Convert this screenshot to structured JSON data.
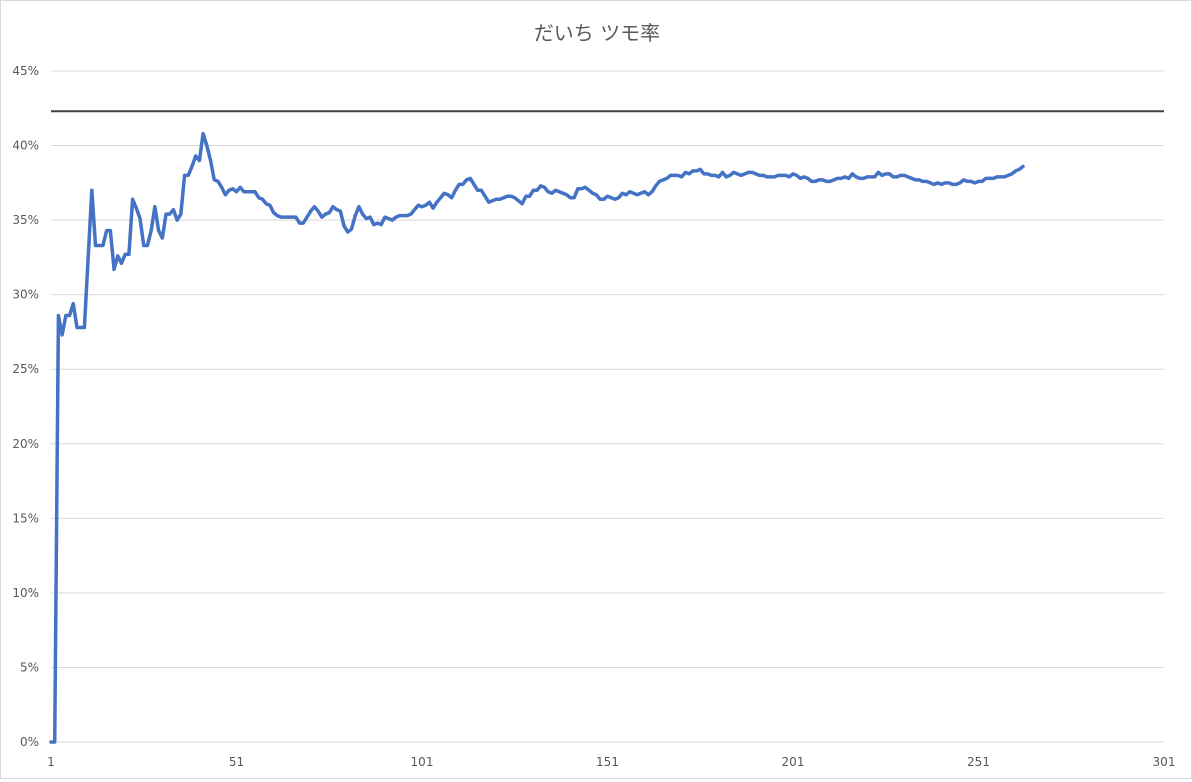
{
  "chart_data": {
    "type": "line",
    "title": "だいち ツモ率",
    "xlabel": "",
    "ylabel": "",
    "xlim": [
      1,
      301
    ],
    "ylim": [
      0,
      0.45
    ],
    "x_ticks": [
      "1",
      "51",
      "101",
      "151",
      "201",
      "251",
      "301"
    ],
    "y_ticks": [
      "0%",
      "5%",
      "10%",
      "15%",
      "20%",
      "25%",
      "30%",
      "35%",
      "40%",
      "45%"
    ],
    "grid": "horizontal",
    "legend": "none",
    "reference_line": {
      "value": 0.423,
      "color": "#404040"
    },
    "series": [
      {
        "color": "#4472c4",
        "points": [
          [
            1,
            0.0
          ],
          [
            2,
            0.0
          ],
          [
            3,
            0.286
          ],
          [
            4,
            0.273
          ],
          [
            5,
            0.286
          ],
          [
            6,
            0.286
          ],
          [
            7,
            0.294
          ],
          [
            8,
            0.278
          ],
          [
            9,
            0.278
          ],
          [
            10,
            0.278
          ],
          [
            12,
            0.37
          ],
          [
            13,
            0.333
          ],
          [
            15,
            0.333
          ],
          [
            16,
            0.343
          ],
          [
            17,
            0.343
          ],
          [
            18,
            0.317
          ],
          [
            19,
            0.326
          ],
          [
            20,
            0.321
          ],
          [
            21,
            0.327
          ],
          [
            22,
            0.327
          ],
          [
            23,
            0.364
          ],
          [
            24,
            0.358
          ],
          [
            25,
            0.351
          ],
          [
            26,
            0.333
          ],
          [
            27,
            0.333
          ],
          [
            28,
            0.343
          ],
          [
            29,
            0.359
          ],
          [
            30,
            0.343
          ],
          [
            31,
            0.338
          ],
          [
            32,
            0.354
          ],
          [
            33,
            0.354
          ],
          [
            34,
            0.357
          ],
          [
            35,
            0.35
          ],
          [
            36,
            0.354
          ],
          [
            37,
            0.38
          ],
          [
            38,
            0.38
          ],
          [
            39,
            0.386
          ],
          [
            40,
            0.393
          ],
          [
            41,
            0.39
          ],
          [
            42,
            0.408
          ],
          [
            43,
            0.4
          ],
          [
            44,
            0.39
          ],
          [
            45,
            0.377
          ],
          [
            46,
            0.376
          ],
          [
            47,
            0.372
          ],
          [
            48,
            0.367
          ],
          [
            49,
            0.37
          ],
          [
            50,
            0.371
          ],
          [
            51,
            0.369
          ],
          [
            52,
            0.372
          ],
          [
            53,
            0.369
          ],
          [
            54,
            0.369
          ],
          [
            56,
            0.369
          ],
          [
            57,
            0.365
          ],
          [
            58,
            0.364
          ],
          [
            59,
            0.361
          ],
          [
            60,
            0.36
          ],
          [
            61,
            0.355
          ],
          [
            62,
            0.353
          ],
          [
            63,
            0.352
          ],
          [
            66,
            0.352
          ],
          [
            67,
            0.352
          ],
          [
            68,
            0.348
          ],
          [
            69,
            0.348
          ],
          [
            70,
            0.352
          ],
          [
            71,
            0.356
          ],
          [
            72,
            0.359
          ],
          [
            73,
            0.356
          ],
          [
            74,
            0.352
          ],
          [
            75,
            0.354
          ],
          [
            76,
            0.355
          ],
          [
            77,
            0.359
          ],
          [
            78,
            0.357
          ],
          [
            79,
            0.356
          ],
          [
            80,
            0.346
          ],
          [
            81,
            0.342
          ],
          [
            82,
            0.344
          ],
          [
            83,
            0.353
          ],
          [
            84,
            0.359
          ],
          [
            85,
            0.354
          ],
          [
            86,
            0.351
          ],
          [
            87,
            0.352
          ],
          [
            88,
            0.347
          ],
          [
            89,
            0.348
          ],
          [
            90,
            0.347
          ],
          [
            91,
            0.352
          ],
          [
            92,
            0.351
          ],
          [
            93,
            0.35
          ],
          [
            94,
            0.352
          ],
          [
            95,
            0.353
          ],
          [
            96,
            0.353
          ],
          [
            97,
            0.353
          ],
          [
            98,
            0.354
          ],
          [
            99,
            0.357
          ],
          [
            100,
            0.36
          ],
          [
            101,
            0.359
          ],
          [
            102,
            0.36
          ],
          [
            103,
            0.362
          ],
          [
            104,
            0.358
          ],
          [
            105,
            0.362
          ],
          [
            106,
            0.365
          ],
          [
            107,
            0.368
          ],
          [
            108,
            0.367
          ],
          [
            109,
            0.365
          ],
          [
            110,
            0.37
          ],
          [
            111,
            0.374
          ],
          [
            112,
            0.374
          ],
          [
            113,
            0.377
          ],
          [
            114,
            0.378
          ],
          [
            115,
            0.374
          ],
          [
            116,
            0.37
          ],
          [
            117,
            0.37
          ],
          [
            118,
            0.366
          ],
          [
            119,
            0.362
          ],
          [
            120,
            0.363
          ],
          [
            121,
            0.364
          ],
          [
            122,
            0.364
          ],
          [
            123,
            0.365
          ],
          [
            124,
            0.366
          ],
          [
            125,
            0.366
          ],
          [
            126,
            0.365
          ],
          [
            127,
            0.363
          ],
          [
            128,
            0.361
          ],
          [
            129,
            0.366
          ],
          [
            130,
            0.366
          ],
          [
            131,
            0.37
          ],
          [
            132,
            0.37
          ],
          [
            133,
            0.373
          ],
          [
            134,
            0.372
          ],
          [
            135,
            0.369
          ],
          [
            136,
            0.368
          ],
          [
            137,
            0.37
          ],
          [
            138,
            0.369
          ],
          [
            139,
            0.368
          ],
          [
            140,
            0.367
          ],
          [
            141,
            0.365
          ],
          [
            142,
            0.365
          ],
          [
            143,
            0.371
          ],
          [
            144,
            0.371
          ],
          [
            145,
            0.372
          ],
          [
            146,
            0.37
          ],
          [
            147,
            0.368
          ],
          [
            148,
            0.367
          ],
          [
            149,
            0.364
          ],
          [
            150,
            0.364
          ],
          [
            151,
            0.366
          ],
          [
            152,
            0.365
          ],
          [
            153,
            0.364
          ],
          [
            154,
            0.365
          ],
          [
            155,
            0.368
          ],
          [
            156,
            0.367
          ],
          [
            157,
            0.369
          ],
          [
            158,
            0.368
          ],
          [
            159,
            0.367
          ],
          [
            160,
            0.368
          ],
          [
            161,
            0.369
          ],
          [
            162,
            0.367
          ],
          [
            163,
            0.369
          ],
          [
            164,
            0.373
          ],
          [
            165,
            0.376
          ],
          [
            166,
            0.377
          ],
          [
            167,
            0.378
          ],
          [
            168,
            0.38
          ],
          [
            169,
            0.38
          ],
          [
            170,
            0.38
          ],
          [
            171,
            0.379
          ],
          [
            172,
            0.382
          ],
          [
            173,
            0.381
          ],
          [
            174,
            0.383
          ],
          [
            175,
            0.383
          ],
          [
            176,
            0.384
          ],
          [
            177,
            0.381
          ],
          [
            178,
            0.381
          ],
          [
            179,
            0.38
          ],
          [
            180,
            0.38
          ],
          [
            181,
            0.379
          ],
          [
            182,
            0.382
          ],
          [
            183,
            0.379
          ],
          [
            184,
            0.38
          ],
          [
            185,
            0.382
          ],
          [
            186,
            0.381
          ],
          [
            187,
            0.38
          ],
          [
            188,
            0.381
          ],
          [
            189,
            0.382
          ],
          [
            190,
            0.382
          ],
          [
            191,
            0.381
          ],
          [
            192,
            0.38
          ],
          [
            193,
            0.38
          ],
          [
            194,
            0.379
          ],
          [
            195,
            0.379
          ],
          [
            196,
            0.379
          ],
          [
            197,
            0.38
          ],
          [
            198,
            0.38
          ],
          [
            199,
            0.38
          ],
          [
            200,
            0.379
          ],
          [
            201,
            0.381
          ],
          [
            202,
            0.38
          ],
          [
            203,
            0.378
          ],
          [
            204,
            0.379
          ],
          [
            205,
            0.378
          ],
          [
            206,
            0.376
          ],
          [
            207,
            0.376
          ],
          [
            208,
            0.377
          ],
          [
            209,
            0.377
          ],
          [
            210,
            0.376
          ],
          [
            211,
            0.376
          ],
          [
            212,
            0.377
          ],
          [
            213,
            0.378
          ],
          [
            214,
            0.378
          ],
          [
            215,
            0.379
          ],
          [
            216,
            0.378
          ],
          [
            217,
            0.381
          ],
          [
            218,
            0.379
          ],
          [
            219,
            0.378
          ],
          [
            220,
            0.378
          ],
          [
            221,
            0.379
          ],
          [
            222,
            0.379
          ],
          [
            223,
            0.379
          ],
          [
            224,
            0.382
          ],
          [
            225,
            0.38
          ],
          [
            226,
            0.381
          ],
          [
            227,
            0.381
          ],
          [
            228,
            0.379
          ],
          [
            229,
            0.379
          ],
          [
            230,
            0.38
          ],
          [
            231,
            0.38
          ],
          [
            232,
            0.379
          ],
          [
            233,
            0.378
          ],
          [
            234,
            0.377
          ],
          [
            235,
            0.377
          ],
          [
            236,
            0.376
          ],
          [
            237,
            0.376
          ],
          [
            238,
            0.375
          ],
          [
            239,
            0.374
          ],
          [
            240,
            0.375
          ],
          [
            241,
            0.374
          ],
          [
            242,
            0.375
          ],
          [
            243,
            0.375
          ],
          [
            244,
            0.374
          ],
          [
            245,
            0.374
          ],
          [
            246,
            0.375
          ],
          [
            247,
            0.377
          ],
          [
            248,
            0.376
          ],
          [
            249,
            0.376
          ],
          [
            250,
            0.375
          ],
          [
            251,
            0.376
          ],
          [
            252,
            0.376
          ],
          [
            253,
            0.378
          ],
          [
            254,
            0.378
          ],
          [
            255,
            0.378
          ],
          [
            256,
            0.379
          ],
          [
            257,
            0.379
          ],
          [
            258,
            0.379
          ],
          [
            259,
            0.38
          ],
          [
            260,
            0.381
          ],
          [
            261,
            0.383
          ],
          [
            262,
            0.384
          ],
          [
            263,
            0.386
          ]
        ]
      }
    ]
  }
}
